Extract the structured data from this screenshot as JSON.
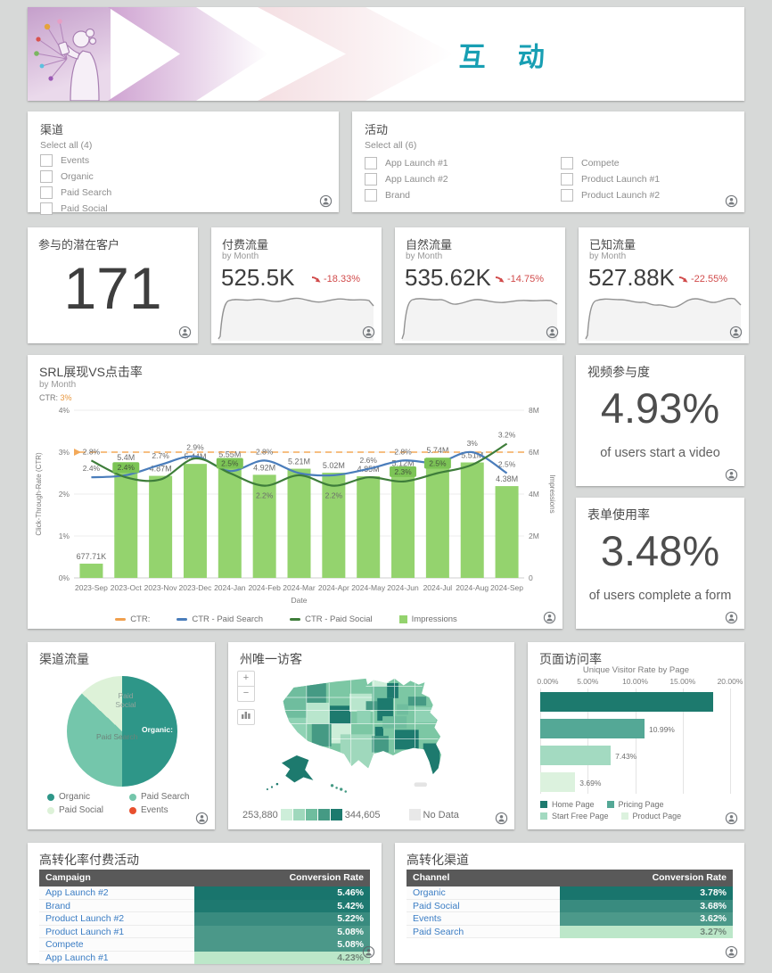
{
  "header": {
    "title": "互 动"
  },
  "theme": {
    "accent_teal": "#189fb3",
    "negative_red": "#d14b4b",
    "table_scale_low": "#bce7c9",
    "table_scale_high": "#19756d"
  },
  "filters": {
    "channel": {
      "title": "渠道",
      "select_all": "Select all (4)",
      "options": [
        "Events",
        "Organic",
        "Paid Search",
        "Paid Social"
      ],
      "checked": [
        false,
        false,
        false,
        false
      ]
    },
    "campaign": {
      "title": "活动",
      "select_all": "Select all (6)",
      "options_left": [
        "App Launch #1",
        "App Launch #2",
        "Brand"
      ],
      "options_right": [
        "Compete",
        "Product Launch #1",
        "Product Launch #2"
      ],
      "checked": [
        false,
        false,
        false,
        false,
        false,
        false
      ]
    }
  },
  "kpis": {
    "leads": {
      "title": "参与的潜在客户",
      "value": "171"
    },
    "paid": {
      "title": "付费流量",
      "subtitle": "by Month",
      "value": "525.5K",
      "change": "-18.33%"
    },
    "organic": {
      "title": "自然流量",
      "subtitle": "by Month",
      "value": "535.62K",
      "change": "-14.75%"
    },
    "known": {
      "title": "已知流量",
      "subtitle": "by Month",
      "value": "527.88K",
      "change": "-22.55%"
    }
  },
  "cards": {
    "video": {
      "title": "视频参与度",
      "value": "4.93%",
      "caption": "of users start a video"
    },
    "form": {
      "title": "表单使用率",
      "value": "3.48%",
      "caption": "of users complete a form"
    }
  },
  "map_ui": {
    "zoom_in": "+",
    "zoom_out": "−"
  },
  "chart_data": [
    {
      "id": "srl-impressions-vs-ctr",
      "type": "combo-bar-line",
      "title": "SRL展现VS点击率",
      "subtitle": "by Month",
      "target_label": "CTR:",
      "target_value": "3%",
      "target": 3,
      "categories": [
        "2023-Sep",
        "2023-Oct",
        "2023-Nov",
        "2023-Dec",
        "2024-Jan",
        "2024-Feb",
        "2024-Mar",
        "2024-Apr",
        "2024-May",
        "2024-Jun",
        "2024-Jul",
        "2024-Aug",
        "2024-Sep"
      ],
      "bars": {
        "name": "Impressions",
        "color": "#94d36e",
        "values": [
          0.68,
          5.4,
          4.87,
          5.44,
          5.55,
          4.92,
          5.21,
          5.02,
          4.85,
          5.12,
          5.74,
          5.51,
          4.38
        ],
        "labels": [
          "677.71K",
          "5.4M",
          "4.87M",
          "5.44M",
          "5.55M",
          "4.92M",
          "5.21M",
          "5.02M",
          "4.85M",
          "5.12M",
          "5.74M",
          "5.51M",
          "4.38M"
        ]
      },
      "lines": [
        {
          "name": "CTR - Paid Search",
          "color": "#4a7dbb",
          "values": [
            2.4,
            2.45,
            2.7,
            2.9,
            2.55,
            2.8,
            2.5,
            2.45,
            2.6,
            2.8,
            2.75,
            3.0,
            2.5
          ],
          "labels": {
            "0": "2.4%",
            "2": "2.7%",
            "3": "2.9%",
            "5": "2.8%",
            "8": "2.6%",
            "9": "2.8%",
            "11": "3%",
            "12": "2.5%"
          },
          "below": [],
          "boxed": []
        },
        {
          "name": "CTR - Paid Social",
          "color": "#3e7d3a",
          "box_color": "#7cc456",
          "values": [
            2.8,
            2.4,
            2.35,
            2.85,
            2.5,
            2.2,
            2.45,
            2.2,
            2.4,
            2.3,
            2.5,
            2.7,
            3.2
          ],
          "labels": {
            "0": "2.8%",
            "1": "2.4%",
            "4": "2.5%",
            "5": "2.2%",
            "7": "2.2%",
            "9": "2.3%",
            "10": "2.5%",
            "12": "3.2%"
          },
          "below": [
            5,
            7
          ],
          "boxed": [
            1,
            4,
            9,
            10
          ]
        }
      ],
      "y_left": {
        "label": "Click-Through-Rate (CTR)",
        "ticks": [
          "0%",
          "1%",
          "2%",
          "3%",
          "4%"
        ],
        "max": 4
      },
      "y_right": {
        "label": "Impressions",
        "ticks": [
          "0",
          "2M",
          "4M",
          "6M",
          "8M"
        ],
        "max": 8
      },
      "x_label": "Date",
      "legend": [
        {
          "label": "CTR:",
          "color": "#f0a04e",
          "type": "dash"
        },
        {
          "label": "CTR - Paid Search",
          "color": "#4a7dbb",
          "type": "dash"
        },
        {
          "label": "CTR - Paid Social",
          "color": "#3e7d3a",
          "type": "dash"
        },
        {
          "label": "Impressions",
          "color": "#94d36e",
          "type": "square"
        }
      ]
    },
    {
      "id": "channel-traffic",
      "type": "pie",
      "title": "渠道流量",
      "slices": [
        {
          "label": "Organic",
          "display": "Organic:",
          "value": 50,
          "color": "#2e9688"
        },
        {
          "label": "Paid Search",
          "display": "Paid Search",
          "value": 37,
          "color": "#74c6ab"
        },
        {
          "label": "Paid Social",
          "display": "Paid Social",
          "value": 13,
          "color": "#ddf2d8"
        },
        {
          "label": "Events",
          "display": "Events",
          "value": 0,
          "color": "#e8502e"
        }
      ]
    },
    {
      "id": "state-unique-visitors",
      "type": "choropleth-map",
      "title": "州唯一访客",
      "legend_min": "253,880",
      "legend_max": "344,605",
      "no_data_label": "No Data",
      "no_data_color": "#e8e8e8",
      "scale": [
        "#cdeed9",
        "#9fd8bc",
        "#6fbd9e",
        "#459a84",
        "#1d7a6e"
      ]
    },
    {
      "id": "page-visit-rate",
      "type": "bar-horizontal",
      "title": "页面访问率",
      "chart_title": "Unique Visitor Rate by Page",
      "categories": [
        "Home Page",
        "Pricing Page",
        "Start Free Page",
        "Product Page"
      ],
      "values": [
        18.23,
        10.99,
        7.43,
        3.69
      ],
      "labels": [
        "18.23%",
        "10.99%",
        "7.43%",
        "3.69%"
      ],
      "colors": [
        "#1d7a6e",
        "#54a896",
        "#a3dac1",
        "#dcf2de"
      ],
      "x_ticks": [
        "0.00%",
        "5.00%",
        "10.00%",
        "15.00%",
        "20.00%"
      ],
      "x_max": 20
    },
    {
      "id": "campaign-conversion",
      "type": "table",
      "title": "高转化率付费活动",
      "columns": [
        "Campaign",
        "Conversion Rate"
      ],
      "rows": [
        [
          "App Launch #2",
          "5.46%"
        ],
        [
          "Brand",
          "5.42%"
        ],
        [
          "Product Launch #2",
          "5.22%"
        ],
        [
          "Product Launch #1",
          "5.08%"
        ],
        [
          "Compete",
          "5.08%"
        ],
        [
          "App Launch #1",
          "4.23%"
        ]
      ],
      "values": [
        5.46,
        5.42,
        5.22,
        5.08,
        5.08,
        4.23
      ]
    },
    {
      "id": "channel-conversion",
      "type": "table",
      "title": "高转化渠道",
      "columns": [
        "Channel",
        "Conversion Rate"
      ],
      "rows": [
        [
          "Organic",
          "3.78%"
        ],
        [
          "Paid Social",
          "3.68%"
        ],
        [
          "Events",
          "3.62%"
        ],
        [
          "Paid Search",
          "3.27%"
        ]
      ],
      "values": [
        3.78,
        3.68,
        3.62,
        3.27
      ]
    }
  ]
}
